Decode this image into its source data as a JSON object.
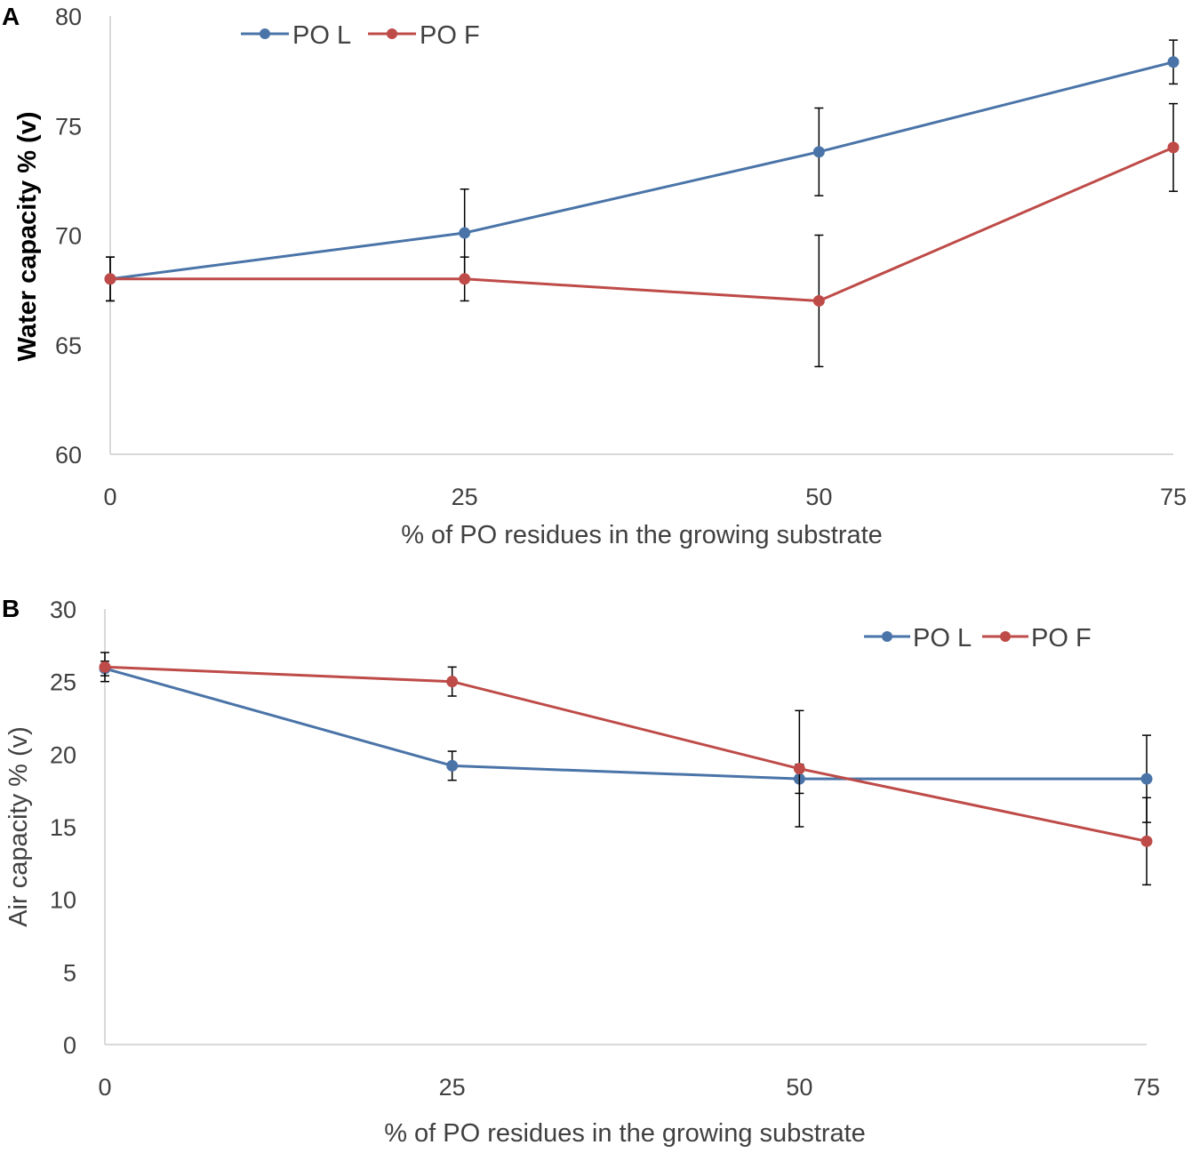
{
  "chart_data": [
    {
      "panel": "A",
      "type": "line",
      "xlabel": "% of PO residues in the growing substrate",
      "ylabel": "Water capacity % (v)",
      "x": [
        0,
        25,
        50,
        75
      ],
      "xticks": [
        "0",
        "25",
        "50",
        "75"
      ],
      "ylim": [
        60,
        80
      ],
      "yticks": [
        60,
        65,
        70,
        75,
        80
      ],
      "legend_position": "top-left",
      "series": [
        {
          "name": "PO  L",
          "color": "#4a74a8",
          "values": [
            68.0,
            70.1,
            73.8,
            77.9
          ],
          "errors": [
            1.0,
            2.0,
            2.0,
            1.0
          ]
        },
        {
          "name": "PO  F",
          "color": "#be4b48",
          "values": [
            68.0,
            68.0,
            67.0,
            74.0
          ],
          "errors": [
            1.0,
            1.0,
            3.0,
            2.0
          ]
        }
      ]
    },
    {
      "panel": "B",
      "type": "line",
      "xlabel": "% of PO residues in the growing substrate",
      "ylabel": "Air capacity % (v)",
      "x": [
        0,
        25,
        50,
        75
      ],
      "xticks": [
        "0",
        "25",
        "50",
        "75"
      ],
      "ylim": [
        0,
        30
      ],
      "yticks": [
        0,
        5,
        10,
        15,
        20,
        25,
        30
      ],
      "legend_position": "top-right",
      "series": [
        {
          "name": "PO L",
          "color": "#4a74a8",
          "values": [
            25.9,
            19.2,
            18.3,
            18.3
          ],
          "errors": [
            0.5,
            1.0,
            1.0,
            3.0
          ]
        },
        {
          "name": "PO F",
          "color": "#be4b48",
          "values": [
            26.0,
            25.0,
            19.0,
            14.0
          ],
          "errors": [
            1.0,
            1.0,
            4.0,
            3.0
          ]
        }
      ]
    }
  ]
}
